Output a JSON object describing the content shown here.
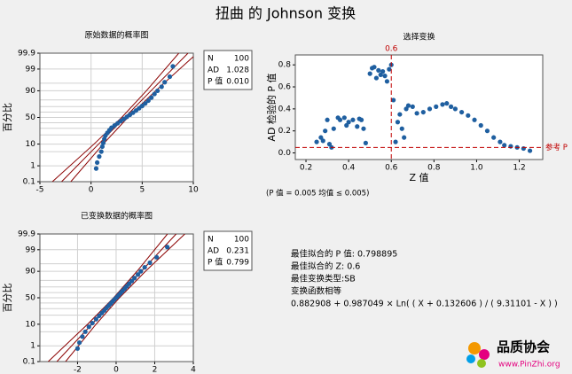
{
  "title": "扭曲 的 Johnson 变换",
  "chart_data": [
    {
      "type": "probability",
      "title": "原始数据的概率图",
      "ylabel": "百分比",
      "color": "#1f5fa0",
      "line_color": "#8b0000",
      "xlim": [
        -5,
        10
      ],
      "xticks": [
        -5,
        0,
        5,
        10
      ],
      "ylim": [
        0.1,
        99.9
      ],
      "yscale": "normal",
      "yticks": [
        0.1,
        1,
        10,
        50,
        90,
        99,
        99.9
      ],
      "ygrid": [
        5,
        20,
        30,
        40,
        60,
        70,
        80,
        95
      ],
      "grid": true,
      "x": [
        0.5,
        0.6,
        0.8,
        1.0,
        1.1,
        1.2,
        1.3,
        1.4,
        1.6,
        1.8,
        2.0,
        2.3,
        2.6,
        2.9,
        3.2,
        3.5,
        3.8,
        4.1,
        4.4,
        4.7,
        5.0,
        5.3,
        5.6,
        5.9,
        6.2,
        6.5,
        6.9,
        7.2,
        7.7,
        8.0
      ],
      "y": [
        0.7,
        1.5,
        3,
        5,
        8,
        11,
        15,
        19,
        23,
        27,
        31,
        35,
        39,
        43,
        47,
        51,
        55,
        59,
        63,
        67,
        71,
        75,
        79,
        83,
        87,
        90,
        93,
        95.5,
        97.5,
        99.3
      ],
      "lines": [
        {
          "x": [
            -2.88,
            0.74,
            3.3,
            5.86,
            9.48
          ],
          "y": [
            0.1,
            10,
            50,
            90,
            99.9
          ]
        },
        {
          "x": [
            -3.78,
            0.29,
            3.0,
            5.41,
            8.58
          ],
          "y": [
            0.1,
            10,
            50,
            90,
            99.9
          ]
        },
        {
          "x": [
            -1.98,
            1.19,
            3.6,
            6.31,
            10.38
          ],
          "y": [
            0.1,
            10,
            50,
            90,
            99.9
          ]
        }
      ],
      "stats": [
        [
          "N",
          "100"
        ],
        [
          "AD",
          "1.028"
        ],
        [
          "P 值",
          "0.010"
        ]
      ]
    },
    {
      "type": "probability",
      "title": "已变换数据的概率图",
      "ylabel": "百分比",
      "color": "#1f5fa0",
      "line_color": "#8b0000",
      "xlim": [
        -3.95,
        4
      ],
      "xticks": [
        -2,
        0,
        2,
        4
      ],
      "ylim": [
        0.1,
        99.9
      ],
      "yscale": "normal",
      "yticks": [
        0.1,
        1,
        10,
        50,
        90,
        99,
        99.9
      ],
      "ygrid": [
        5,
        20,
        30,
        40,
        60,
        70,
        80,
        95
      ],
      "grid": true,
      "x": [
        -2.0,
        -1.9,
        -1.75,
        -1.6,
        -1.41,
        -1.23,
        -1.04,
        -0.88,
        -0.74,
        -0.61,
        -0.5,
        -0.39,
        -0.28,
        -0.18,
        -0.08,
        0.03,
        0.13,
        0.23,
        0.33,
        0.44,
        0.55,
        0.67,
        0.81,
        0.95,
        1.13,
        1.28,
        1.48,
        1.75,
        2.1,
        2.65
      ],
      "y": [
        0.7,
        1.5,
        3,
        5,
        8,
        11,
        15,
        19,
        23,
        27,
        31,
        35,
        39,
        43,
        47,
        51,
        55,
        59,
        63,
        67,
        71,
        75,
        79,
        83,
        87,
        90,
        93,
        95.5,
        97.5,
        99.3
      ],
      "lines": [
        {
          "x": [
            -3.07,
            -1.26,
            0.02,
            1.3,
            3.11
          ],
          "y": [
            0.1,
            10,
            50,
            90,
            99.9
          ]
        },
        {
          "x": [
            -3.52,
            -1.48,
            -0.13,
            1.08,
            2.66
          ],
          "y": [
            0.1,
            10,
            50,
            90,
            99.9
          ]
        },
        {
          "x": [
            -2.62,
            -1.04,
            0.17,
            1.52,
            3.56
          ],
          "y": [
            0.1,
            10,
            50,
            90,
            99.9
          ]
        }
      ],
      "stats": [
        [
          "N",
          "100"
        ],
        [
          "AD",
          "0.231"
        ],
        [
          "P 值",
          "0.799"
        ]
      ]
    },
    {
      "type": "scatter",
      "title": "选择变换",
      "xlabel": "Z 值",
      "ylabel": "AD 检验的 P 值",
      "color": "#1f5fa0",
      "ref_color": "#c00000",
      "xlim": [
        0.15,
        1.31
      ],
      "xticks": [
        0.2,
        0.4,
        0.6,
        0.8,
        {
          "value": 1,
          "label": "1.0"
        },
        1.2
      ],
      "ylim": [
        -0.06,
        0.89
      ],
      "yticks": [
        {
          "value": 0,
          "label": "0.0"
        },
        0.2,
        0.4,
        0.6,
        0.8
      ],
      "vline": 0.6,
      "hline": 0.05,
      "hline_label": "参考 P",
      "note": "(P 值 = 0.005 均值 ≤ 0.005)",
      "x": [
        0.25,
        0.27,
        0.28,
        0.29,
        0.3,
        0.31,
        0.32,
        0.33,
        0.35,
        0.36,
        0.38,
        0.39,
        0.4,
        0.42,
        0.44,
        0.45,
        0.46,
        0.47,
        0.48,
        0.5,
        0.51,
        0.52,
        0.53,
        0.54,
        0.55,
        0.56,
        0.57,
        0.58,
        0.59,
        0.6,
        0.61,
        0.62,
        0.63,
        0.64,
        0.65,
        0.66,
        0.67,
        0.68,
        0.7,
        0.72,
        0.75,
        0.78,
        0.81,
        0.84,
        0.86,
        0.88,
        0.9,
        0.93,
        0.96,
        0.99,
        1.02,
        1.05,
        1.08,
        1.11,
        1.13,
        1.16,
        1.19,
        1.22,
        1.25
      ],
      "y": [
        0.1,
        0.14,
        0.11,
        0.2,
        0.3,
        0.08,
        0.05,
        0.22,
        0.32,
        0.3,
        0.32,
        0.25,
        0.28,
        0.3,
        0.24,
        0.31,
        0.3,
        0.22,
        0.09,
        0.72,
        0.77,
        0.78,
        0.68,
        0.75,
        0.71,
        0.74,
        0.7,
        0.65,
        0.76,
        0.8,
        0.48,
        0.1,
        0.28,
        0.35,
        0.22,
        0.14,
        0.4,
        0.43,
        0.42,
        0.36,
        0.37,
        0.4,
        0.42,
        0.44,
        0.45,
        0.42,
        0.4,
        0.37,
        0.34,
        0.3,
        0.25,
        0.2,
        0.14,
        0.1,
        0.07,
        0.06,
        0.05,
        0.04,
        0.02
      ]
    }
  ],
  "results": [
    "最佳拟合的 P 值: 0.798895",
    "最佳拟合的 Z: 0.6",
    "最佳变换类型:SB",
    "变换函数相等",
    "0.882908 + 0.987049 × Ln( ( X + 0.132606 ) / ( 9.31101 - X ) )"
  ],
  "logo": {
    "name": "品质协会",
    "url": "www.PinZhi.org"
  }
}
